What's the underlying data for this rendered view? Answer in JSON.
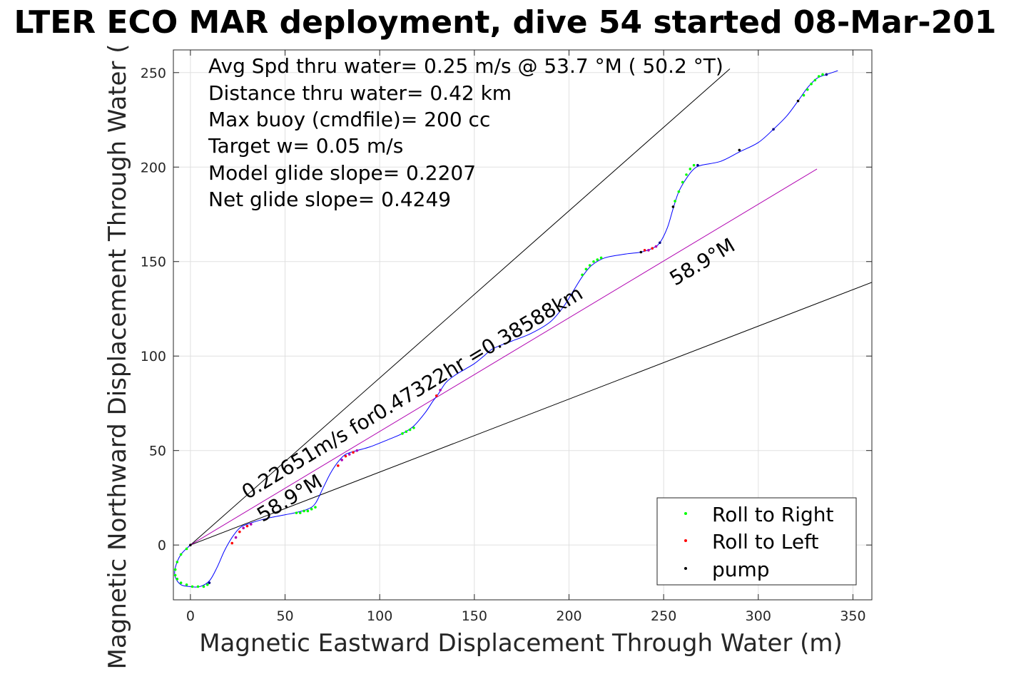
{
  "chart_data": {
    "type": "scatter",
    "title": "LTER ECO MAR deployment, dive 54 started 08-Mar-201",
    "xlabel": "Magnetic Eastward Displacement Through Water (m)",
    "ylabel": "Magnetic Northward Displacement Through Water (",
    "xlim": [
      -9,
      360
    ],
    "ylim": [
      -29,
      262
    ],
    "xticks": [
      0,
      50,
      100,
      150,
      200,
      250,
      300,
      350
    ],
    "yticks": [
      0,
      50,
      100,
      150,
      200,
      250
    ],
    "grid": true,
    "legend_position": "bottom-right",
    "annotations": [
      "Avg Spd thru water=  0.25 m/s @  53.7 °M ( 50.2 °T)",
      "Distance thru water=  0.42 km",
      "Max buoy (cmdfile)= 200 cc",
      "Target w= 0.05 m/s",
      "Model glide slope= 0.2207",
      "Net glide slope= 0.4249"
    ],
    "rotated_labels": [
      {
        "text": "0.22651m/s for0.47322hr =0.38588km",
        "x": 30,
        "y": 24,
        "angle_deg": 31
      },
      {
        "text": "58.9°M",
        "x": 38,
        "y": 12,
        "angle_deg": 31
      },
      {
        "text": "58.9°M",
        "x": 256,
        "y": 137,
        "angle_deg": 31
      }
    ],
    "lines": [
      {
        "name": "heading-line-upper",
        "color": "#000000",
        "points": [
          [
            0,
            0
          ],
          [
            285,
            252
          ]
        ]
      },
      {
        "name": "heading-line-lower",
        "color": "#000000",
        "points": [
          [
            0,
            0
          ],
          [
            360,
            139
          ]
        ]
      },
      {
        "name": "net-track",
        "color": "#b000b0",
        "points": [
          [
            0,
            0
          ],
          [
            331,
            199
          ]
        ]
      }
    ],
    "track": {
      "name": "glider-track",
      "color": "#0000ff",
      "points": [
        [
          0,
          0
        ],
        [
          -5,
          -5
        ],
        [
          -8,
          -12
        ],
        [
          -8,
          -17
        ],
        [
          -5,
          -21
        ],
        [
          0,
          -22
        ],
        [
          5,
          -22
        ],
        [
          10,
          -19
        ],
        [
          14,
          -12
        ],
        [
          18,
          -3
        ],
        [
          22,
          4
        ],
        [
          26,
          9
        ],
        [
          30,
          11
        ],
        [
          40,
          14
        ],
        [
          50,
          16
        ],
        [
          55,
          17
        ],
        [
          62,
          19
        ],
        [
          66,
          22
        ],
        [
          70,
          30
        ],
        [
          74,
          38
        ],
        [
          78,
          44
        ],
        [
          82,
          48
        ],
        [
          88,
          50
        ],
        [
          95,
          52
        ],
        [
          105,
          56
        ],
        [
          112,
          59
        ],
        [
          118,
          63
        ],
        [
          124,
          70
        ],
        [
          128,
          76
        ],
        [
          131,
          80
        ],
        [
          135,
          86
        ],
        [
          140,
          90
        ],
        [
          145,
          93
        ],
        [
          150,
          96
        ],
        [
          155,
          100
        ],
        [
          160,
          104
        ],
        [
          170,
          108
        ],
        [
          180,
          112
        ],
        [
          190,
          118
        ],
        [
          197,
          126
        ],
        [
          202,
          134
        ],
        [
          207,
          142
        ],
        [
          212,
          148
        ],
        [
          219,
          152
        ],
        [
          230,
          154
        ],
        [
          238,
          155
        ],
        [
          244,
          157
        ],
        [
          248,
          160
        ],
        [
          252,
          168
        ],
        [
          255,
          178
        ],
        [
          258,
          187
        ],
        [
          262,
          194
        ],
        [
          266,
          199
        ],
        [
          270,
          201
        ],
        [
          280,
          203
        ],
        [
          290,
          208
        ],
        [
          300,
          213
        ],
        [
          308,
          220
        ],
        [
          315,
          227
        ],
        [
          321,
          235
        ],
        [
          326,
          242
        ],
        [
          331,
          247
        ],
        [
          336,
          249
        ],
        [
          342,
          251
        ]
      ]
    },
    "series": [
      {
        "name": "Roll to Right",
        "color": "#00ff00",
        "x": [
          -2,
          -5,
          -7,
          -8,
          -8,
          -7,
          -5,
          -2,
          1,
          4,
          7,
          9,
          56,
          58,
          60,
          62,
          64,
          66,
          112,
          114,
          116,
          118,
          207,
          209,
          211,
          213,
          215,
          217,
          256,
          258,
          260,
          262,
          264,
          266,
          324,
          326,
          328,
          330,
          332,
          334
        ],
        "y": [
          -2,
          -5,
          -9,
          -13,
          -16,
          -18,
          -20,
          -21,
          -22,
          -22,
          -22,
          -21,
          17,
          17,
          18,
          18,
          19,
          20,
          59,
          60,
          61,
          62,
          143,
          146,
          148,
          150,
          151,
          152,
          182,
          187,
          192,
          196,
          199,
          201,
          238,
          241,
          244,
          246,
          248,
          249
        ]
      },
      {
        "name": "Roll to Left",
        "color": "#ff0000",
        "x": [
          22,
          24,
          26,
          28,
          30,
          32,
          78,
          80,
          82,
          84,
          86,
          88,
          130,
          132,
          240,
          242,
          244,
          246
        ],
        "y": [
          1,
          4,
          7,
          9,
          10,
          11,
          42,
          45,
          47,
          48,
          49,
          50,
          79,
          82,
          156,
          156,
          157,
          158
        ],
        "secondary_color": "#b000b0"
      },
      {
        "name": "pump",
        "color": "#000000",
        "x": [
          0,
          10,
          238,
          248,
          255,
          268,
          290,
          308,
          321,
          336
        ],
        "y": [
          0,
          -20,
          155,
          160,
          179,
          201,
          209,
          220,
          235,
          249
        ],
        "secondary_color": "#000080"
      }
    ]
  }
}
